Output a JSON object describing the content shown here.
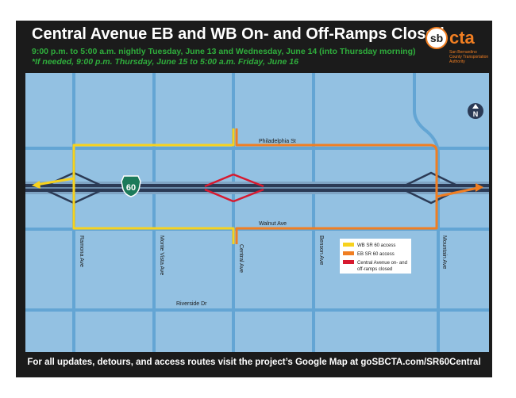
{
  "header": {
    "title": "Central Avenue EB and WB On- and Off-Ramps Closed",
    "schedule_line1": "9:00 p.m. to 5:00 a.m. nightly Tuesday, June 13 and Wednesday, June 14 (into Thursday morning)",
    "schedule_line2": "*If needed, 9:00 p.m. Thursday, June 15 to 5:00 a.m. Friday, June 16"
  },
  "logo": {
    "mark": "sb",
    "wordmark": "cta",
    "tagline": "San Bernardino County Transportation Authority"
  },
  "map": {
    "freeway_shield": "60",
    "north_label": "N",
    "streets": {
      "philadelphia": "Philadelphia St",
      "walnut": "Walnut Ave",
      "riverside": "Riverside Dr",
      "ramona": "Ramona Ave",
      "monte_vista": "Monte Vista Ave",
      "central": "Central Ave",
      "benson": "Benson Ave",
      "mountain": "Mountain Ave"
    },
    "legend": {
      "wb_access": "WB SR 60 access",
      "eb_access": "EB SR 60 access",
      "closed_line1": "Central Avenue on- and",
      "closed_line2": "off-ramps closed"
    },
    "colors": {
      "background": "#93c1e2",
      "street": "#63a5d4",
      "freeway": "#2b3a55",
      "wb_access": "#f7d21e",
      "eb_access": "#f07e22",
      "closed": "#d7192f",
      "shield": "#1c7a5a"
    }
  },
  "footer": {
    "text": "For all updates, detours, and access routes visit the project’s Google Map at goSBCTA.com/SR60Central"
  }
}
